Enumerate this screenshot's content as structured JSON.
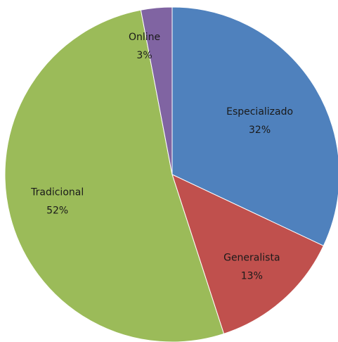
{
  "chart_data": {
    "type": "pie",
    "title": "",
    "start_angle_deg": 0,
    "direction": "clockwise",
    "slices": [
      {
        "label": "Especializado",
        "value": 32,
        "display_value": "32%",
        "color": "#4f81bd"
      },
      {
        "label": "Generalista",
        "value": 13,
        "display_value": "13%",
        "color": "#c0504d"
      },
      {
        "label": "Tradicional",
        "value": 52,
        "display_value": "52%",
        "color": "#9bbb59"
      },
      {
        "label": "Online",
        "value": 3,
        "display_value": "3%",
        "color": "#8064a2"
      }
    ]
  }
}
